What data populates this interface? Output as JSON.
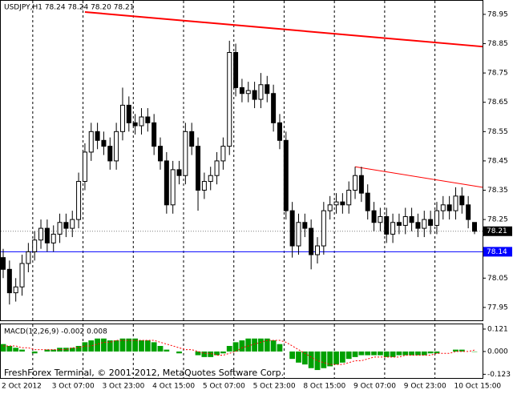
{
  "chart_data": {
    "type": "candlestick",
    "title": "USDJPY,H1  78.24 78.24 78.20 78.21",
    "footer": "FreshForex Terminal, © 2001-2012, MetaQuotes Software Corp.",
    "categories": [
      "2 Oct 2012",
      null,
      null,
      null,
      null,
      null,
      null,
      null,
      "3 Oct 07:00",
      null,
      null,
      null,
      null,
      null,
      null,
      null,
      "3 Oct 23:00",
      null,
      null,
      null,
      null,
      null,
      null,
      null,
      "4 Oct 15:00",
      null,
      null,
      null,
      null,
      null,
      null,
      null,
      "5 Oct 07:00",
      null,
      null,
      null,
      null,
      null,
      null,
      null,
      "5 Oct 23:00",
      null,
      null,
      null,
      null,
      null,
      null,
      null,
      "8 Oct 15:00",
      null,
      null,
      null,
      null,
      null,
      null,
      null,
      "9 Oct 07:00",
      null,
      null,
      null,
      null,
      null,
      null,
      null,
      "9 Oct 23:00",
      null,
      null,
      null,
      null,
      null,
      null,
      null,
      "10 Oct 15:00",
      null,
      null,
      null
    ],
    "open": [
      78.12,
      78.08,
      78.0,
      78.02,
      78.1,
      78.14,
      78.18,
      78.22,
      78.17,
      78.2,
      78.24,
      78.22,
      78.25,
      78.38,
      78.48,
      78.55,
      78.52,
      78.5,
      78.45,
      78.55,
      78.64,
      78.58,
      78.57,
      78.6,
      78.58,
      78.5,
      78.45,
      78.3,
      78.42,
      78.4,
      78.55,
      78.5,
      78.35,
      78.38,
      78.4,
      78.45,
      78.5,
      78.82,
      78.7,
      78.68,
      78.69,
      78.66,
      78.71,
      78.68,
      78.58,
      78.52,
      78.28,
      78.16,
      78.24,
      78.22,
      78.13,
      78.16,
      78.28,
      78.3,
      78.31,
      78.3,
      78.35,
      78.4,
      78.34,
      78.28,
      78.24,
      78.26,
      78.2,
      78.24,
      78.23,
      78.26,
      78.24,
      78.22,
      78.25,
      78.23,
      78.28,
      78.3,
      78.28,
      78.33,
      78.3,
      78.24
    ],
    "high": [
      78.15,
      78.11,
      78.05,
      78.13,
      78.17,
      78.21,
      78.25,
      78.25,
      78.23,
      78.27,
      78.27,
      78.28,
      78.41,
      78.51,
      78.58,
      78.58,
      78.55,
      78.53,
      78.58,
      78.7,
      78.67,
      78.61,
      78.63,
      78.63,
      78.61,
      78.53,
      78.48,
      78.45,
      78.45,
      78.58,
      78.58,
      78.53,
      78.41,
      78.43,
      78.48,
      78.53,
      78.86,
      78.85,
      78.73,
      78.72,
      78.72,
      78.75,
      78.74,
      78.71,
      78.61,
      78.55,
      78.31,
      78.27,
      78.27,
      78.25,
      78.19,
      78.31,
      78.33,
      78.34,
      78.34,
      78.38,
      78.43,
      78.43,
      78.37,
      78.31,
      78.29,
      78.29,
      78.27,
      78.27,
      78.29,
      78.29,
      78.27,
      78.28,
      78.28,
      78.31,
      78.33,
      78.33,
      78.36,
      78.36,
      78.33,
      78.24
    ],
    "low": [
      78.05,
      77.96,
      77.97,
      77.99,
      78.07,
      78.11,
      78.15,
      78.14,
      78.14,
      78.17,
      78.19,
      78.19,
      78.22,
      78.35,
      78.45,
      78.49,
      78.47,
      78.42,
      78.42,
      78.52,
      78.55,
      78.54,
      78.54,
      78.55,
      78.47,
      78.42,
      78.27,
      78.27,
      78.37,
      78.37,
      78.47,
      78.28,
      78.32,
      78.35,
      78.37,
      78.42,
      78.47,
      78.67,
      78.65,
      78.65,
      78.63,
      78.63,
      78.65,
      78.55,
      78.49,
      78.25,
      78.12,
      78.13,
      78.19,
      78.08,
      78.1,
      78.13,
      78.25,
      78.27,
      78.27,
      78.27,
      78.32,
      78.31,
      78.25,
      78.21,
      78.21,
      78.17,
      78.17,
      78.2,
      78.2,
      78.21,
      78.19,
      78.19,
      78.2,
      78.2,
      78.25,
      78.25,
      78.25,
      78.27,
      78.22,
      78.2
    ],
    "close": [
      78.08,
      78.0,
      78.02,
      78.1,
      78.14,
      78.18,
      78.22,
      78.17,
      78.2,
      78.24,
      78.22,
      78.25,
      78.38,
      78.48,
      78.55,
      78.52,
      78.5,
      78.45,
      78.55,
      78.64,
      78.58,
      78.57,
      78.6,
      78.58,
      78.5,
      78.45,
      78.3,
      78.42,
      78.4,
      78.55,
      78.5,
      78.35,
      78.38,
      78.4,
      78.45,
      78.5,
      78.82,
      78.7,
      78.68,
      78.69,
      78.66,
      78.71,
      78.68,
      78.58,
      78.52,
      78.28,
      78.16,
      78.24,
      78.22,
      78.13,
      78.16,
      78.28,
      78.3,
      78.31,
      78.3,
      78.35,
      78.4,
      78.34,
      78.28,
      78.24,
      78.26,
      78.2,
      78.24,
      78.23,
      78.26,
      78.24,
      78.22,
      78.25,
      78.23,
      78.28,
      78.3,
      78.28,
      78.33,
      78.3,
      78.25,
      78.21
    ],
    "ylim": [
      77.906,
      78.999
    ],
    "yticks": [
      78.95,
      78.85,
      78.75,
      78.65,
      78.55,
      78.45,
      78.35,
      78.25,
      78.05,
      77.95
    ],
    "grid": true,
    "trendlines": [
      {
        "color": "#ff0000",
        "width": 2,
        "x": [
          13,
          76.4
        ],
        "y": [
          78.958,
          78.84
        ]
      },
      {
        "color": "#ff0000",
        "width": 1,
        "x": [
          56,
          76.4
        ],
        "y": [
          78.43,
          78.36
        ]
      }
    ],
    "price_lines": [
      {
        "value": 78.21,
        "color": "#000000"
      },
      {
        "value": 78.14,
        "color": "#0000ff"
      }
    ],
    "macd": {
      "label": "MACD(12,26,9) -0.002 0.008",
      "color": "#00a000",
      "signal_color": "#ff0000",
      "ylim": [
        -0.143,
        0.151
      ],
      "yticks": [
        0.121,
        {
          "value": 0,
          "label": "0.000"
        },
        -0.123
      ],
      "histogram": [
        0.04,
        0.03,
        0.02,
        0.01,
        0.0,
        -0.01,
        0.0,
        0.01,
        0.01,
        0.02,
        0.02,
        0.02,
        0.03,
        0.05,
        0.06,
        0.07,
        0.07,
        0.06,
        0.06,
        0.07,
        0.07,
        0.07,
        0.06,
        0.06,
        0.05,
        0.03,
        0.01,
        0.0,
        -0.01,
        0.0,
        0.0,
        -0.02,
        -0.03,
        -0.03,
        -0.02,
        -0.01,
        0.03,
        0.05,
        0.06,
        0.07,
        0.07,
        0.07,
        0.07,
        0.06,
        0.04,
        0.0,
        -0.04,
        -0.06,
        -0.07,
        -0.09,
        -0.1,
        -0.09,
        -0.08,
        -0.07,
        -0.06,
        -0.04,
        -0.03,
        -0.02,
        -0.02,
        -0.02,
        -0.02,
        -0.03,
        -0.03,
        -0.02,
        -0.02,
        -0.02,
        -0.02,
        -0.02,
        -0.01,
        -0.01,
        0.0,
        0.0,
        0.01,
        0.01,
        0.0,
        -0.002
      ],
      "signal": [
        0.03,
        0.03,
        0.03,
        0.02,
        0.02,
        0.01,
        0.01,
        0.01,
        0.01,
        0.01,
        0.01,
        0.02,
        0.02,
        0.03,
        0.03,
        0.04,
        0.05,
        0.05,
        0.06,
        0.06,
        0.06,
        0.06,
        0.06,
        0.06,
        0.06,
        0.05,
        0.04,
        0.03,
        0.02,
        0.01,
        0.01,
        0.0,
        -0.01,
        -0.01,
        -0.02,
        -0.02,
        -0.01,
        0.0,
        0.02,
        0.03,
        0.04,
        0.05,
        0.06,
        0.06,
        0.06,
        0.05,
        0.03,
        0.01,
        -0.01,
        -0.03,
        -0.05,
        -0.06,
        -0.07,
        -0.07,
        -0.07,
        -0.06,
        -0.05,
        -0.05,
        -0.04,
        -0.03,
        -0.03,
        -0.03,
        -0.03,
        -0.03,
        -0.02,
        -0.02,
        -0.02,
        -0.02,
        -0.02,
        -0.01,
        -0.01,
        -0.01,
        0.0,
        0.0,
        0.0,
        0.008
      ]
    }
  }
}
